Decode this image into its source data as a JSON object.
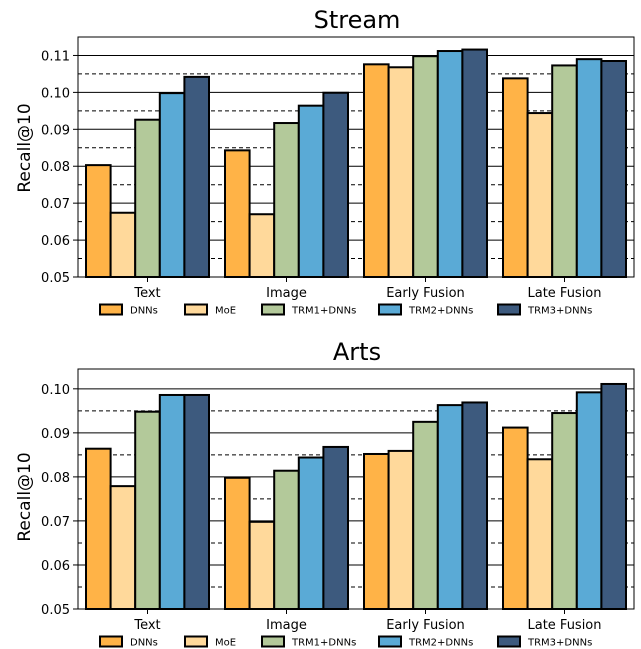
{
  "chart_data": [
    {
      "type": "bar",
      "title": "Stream",
      "xlabel": "",
      "ylabel": "Recall@10",
      "ylim": [
        0.05,
        0.115
      ],
      "yticks": [
        "0.05",
        "0.06",
        "0.07",
        "0.08",
        "0.09",
        "0.10",
        "0.11"
      ],
      "grid": "solid lines at labeled ticks, dashed lines at half ticks",
      "legend_position": "bottom",
      "categories": [
        "Text",
        "Image",
        "Early Fusion",
        "Late Fusion"
      ],
      "series": [
        {
          "name": "DNNs",
          "color": "#ffb347",
          "values": [
            0.0803,
            0.0843,
            0.1076,
            0.1038
          ]
        },
        {
          "name": "MoE",
          "color": "#ffd99b",
          "values": [
            0.0674,
            0.067,
            0.1068,
            0.0944
          ]
        },
        {
          "name": "TRM1+DNNs",
          "color": "#b3c99a",
          "values": [
            0.0926,
            0.0917,
            0.1098,
            0.1073
          ]
        },
        {
          "name": "TRM2+DNNs",
          "color": "#5aaad6",
          "values": [
            0.0998,
            0.0964,
            0.1112,
            0.109
          ]
        },
        {
          "name": "TRM3+DNNs",
          "color": "#3d5a7e",
          "values": [
            0.1042,
            0.0999,
            0.1116,
            0.1085
          ]
        }
      ]
    },
    {
      "type": "bar",
      "title": "Arts",
      "xlabel": "",
      "ylabel": "Recall@10",
      "ylim": [
        0.05,
        0.1045
      ],
      "yticks": [
        "0.05",
        "0.06",
        "0.07",
        "0.08",
        "0.09",
        "0.10"
      ],
      "grid": "solid lines at labeled ticks, dashed lines at half ticks",
      "legend_position": "bottom",
      "categories": [
        "Text",
        "Image",
        "Early Fusion",
        "Late Fusion"
      ],
      "series": [
        {
          "name": "DNNs",
          "color": "#ffb347",
          "values": [
            0.0864,
            0.0798,
            0.0852,
            0.0912
          ]
        },
        {
          "name": "MoE",
          "color": "#ffd99b",
          "values": [
            0.0779,
            0.0698,
            0.0859,
            0.084
          ]
        },
        {
          "name": "TRM1+DNNs",
          "color": "#b3c99a",
          "values": [
            0.0948,
            0.0814,
            0.0925,
            0.0945
          ]
        },
        {
          "name": "TRM2+DNNs",
          "color": "#5aaad6",
          "values": [
            0.0986,
            0.0844,
            0.0963,
            0.0992
          ]
        },
        {
          "name": "TRM3+DNNs",
          "color": "#3d5a7e",
          "values": [
            0.0986,
            0.0868,
            0.0969,
            0.1011
          ]
        }
      ]
    }
  ]
}
